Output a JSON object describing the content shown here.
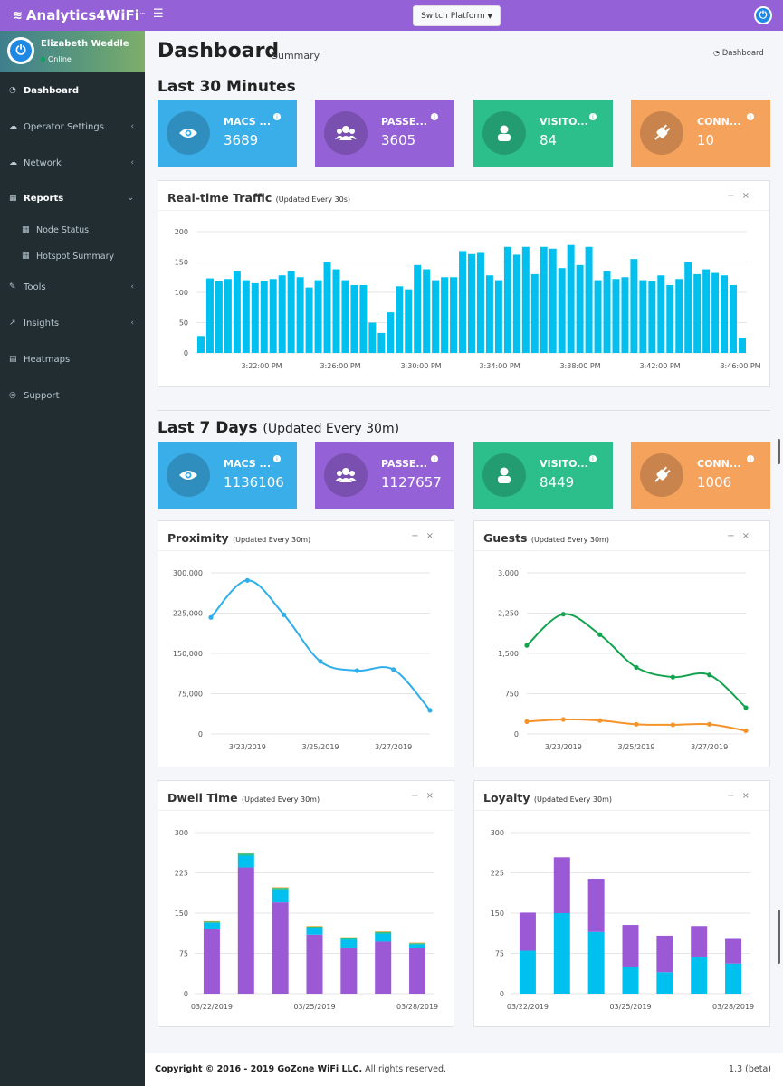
{
  "brand": {
    "name": "Analytics4WiFi",
    "tm": "™"
  },
  "topbar": {
    "switch_label": "Switch Platform",
    "menu_icon": "hamburger-icon"
  },
  "user": {
    "name": "Elizabeth Weddle",
    "status": "Online"
  },
  "sidebar": {
    "items": [
      {
        "label": "Dashboard",
        "icon": "dashboard-icon"
      },
      {
        "label": "Operator Settings",
        "icon": "cloud-icon"
      },
      {
        "label": "Network",
        "icon": "cloud-icon"
      },
      {
        "label": "Reports",
        "icon": "table-icon"
      },
      {
        "label": "Node Status",
        "icon": "table-icon"
      },
      {
        "label": "Hotspot Summary",
        "icon": "table-icon"
      },
      {
        "label": "Tools",
        "icon": "wrench-icon"
      },
      {
        "label": "Insights",
        "icon": "line-chart-icon"
      },
      {
        "label": "Heatmaps",
        "icon": "map-icon"
      },
      {
        "label": "Support",
        "icon": "life-ring-icon"
      }
    ]
  },
  "page": {
    "title": "Dashboard",
    "subtitle": "Summary",
    "breadcrumb": "Dashboard"
  },
  "last30": {
    "heading": "Last 30 Minutes",
    "boxes": [
      {
        "label": "MACS ...",
        "value": "3689",
        "color": "#3aaee8",
        "icon": "eye-icon"
      },
      {
        "label": "PASSE...",
        "value": "3605",
        "color": "#9461d6",
        "icon": "users-icon"
      },
      {
        "label": "VISITO...",
        "value": "84",
        "color": "#2dbf8b",
        "icon": "user-icon"
      },
      {
        "label": "CONN...",
        "value": "10",
        "color": "#f5a25d",
        "icon": "plug-icon"
      }
    ]
  },
  "last7": {
    "heading": "Last 7 Days",
    "heading_sub": "(Updated Every 30m)",
    "boxes": [
      {
        "label": "MACS ...",
        "value": "1136106",
        "color": "#3aaee8",
        "icon": "eye-icon"
      },
      {
        "label": "PASSE...",
        "value": "1127657",
        "color": "#9461d6",
        "icon": "users-icon"
      },
      {
        "label": "VISITO...",
        "value": "8449",
        "color": "#2dbf8b",
        "icon": "user-icon"
      },
      {
        "label": "CONN...",
        "value": "1006",
        "color": "#f5a25d",
        "icon": "plug-icon"
      }
    ]
  },
  "panels": {
    "traffic": {
      "title": "Real-time Traffic",
      "sub": "(Updated Every 30s)"
    },
    "proximity": {
      "title": "Proximity",
      "sub": "(Updated Every 30m)"
    },
    "guests": {
      "title": "Guests",
      "sub": "(Updated Every 30m)"
    },
    "dwell": {
      "title": "Dwell Time",
      "sub": "(Updated Every 30m)"
    },
    "loyalty": {
      "title": "Loyalty",
      "sub": "(Updated Every 30m)"
    }
  },
  "footer": {
    "copyright_bold": "Copyright © 2016 - 2019 GoZone WiFi LLC.",
    "copyright_rest": " All rights reserved.",
    "version": "1.3 (beta)"
  },
  "chart_data": [
    {
      "id": "traffic",
      "type": "bar",
      "title": "Real-time Traffic",
      "ylim": [
        0,
        200
      ],
      "yticks": [
        0,
        50,
        100,
        150,
        200
      ],
      "xtick_labels": [
        "3:22:00 PM",
        "3:26:00 PM",
        "3:30:00 PM",
        "3:34:00 PM",
        "3:38:00 PM",
        "3:42:00 PM",
        "3:46:00 PM"
      ],
      "color": "#00c0ef",
      "values": [
        28,
        123,
        118,
        122,
        135,
        120,
        115,
        118,
        122,
        128,
        135,
        125,
        108,
        120,
        150,
        138,
        120,
        112,
        112,
        50,
        33,
        67,
        110,
        105,
        145,
        138,
        120,
        125,
        125,
        168,
        163,
        165,
        128,
        120,
        175,
        162,
        175,
        130,
        175,
        172,
        140,
        178,
        145,
        175,
        120,
        135,
        122,
        125,
        155,
        120,
        118,
        128,
        112,
        122,
        150,
        130,
        138,
        132,
        128,
        112,
        25
      ],
      "color_hex": "#00c0ef"
    },
    {
      "id": "proximity",
      "type": "line",
      "title": "Proximity",
      "ylim": [
        0,
        300000
      ],
      "yticks": [
        0,
        75000,
        150000,
        225000,
        300000
      ],
      "ytick_labels": [
        "0",
        "75,000",
        "150,000",
        "225,000",
        "300,000"
      ],
      "x": [
        "3/22/2019",
        "3/23/2019",
        "3/24/2019",
        "3/25/2019",
        "3/26/2019",
        "3/27/2019",
        "3/28/2019"
      ],
      "xtick_labels": [
        "3/23/2019",
        "3/25/2019",
        "3/27/2019"
      ],
      "series": [
        {
          "values": [
            217000,
            286000,
            222000,
            135000,
            118000,
            120000,
            44000
          ],
          "color": "#2eaeea"
        }
      ]
    },
    {
      "id": "guests",
      "type": "line",
      "title": "Guests",
      "ylim": [
        0,
        3000
      ],
      "yticks": [
        0,
        750,
        1500,
        2250,
        3000
      ],
      "ytick_labels": [
        "0",
        "750",
        "1,500",
        "2,250",
        "3,000"
      ],
      "x": [
        "3/22/2019",
        "3/23/2019",
        "3/24/2019",
        "3/25/2019",
        "3/26/2019",
        "3/27/2019",
        "3/28/2019"
      ],
      "xtick_labels": [
        "3/23/2019",
        "3/25/2019",
        "3/27/2019"
      ],
      "series": [
        {
          "values": [
            1650,
            2230,
            1850,
            1240,
            1060,
            1100,
            490
          ],
          "color": "#13a34f"
        },
        {
          "values": [
            230,
            270,
            250,
            180,
            170,
            180,
            60
          ],
          "color": "#f5922a"
        }
      ]
    },
    {
      "id": "dwell",
      "type": "bar",
      "stacked": true,
      "title": "Dwell Time",
      "ylim": [
        0,
        300
      ],
      "yticks": [
        0,
        75,
        150,
        225,
        300
      ],
      "categories": [
        "03/22/2019",
        "03/23/2019",
        "03/24/2019",
        "03/25/2019",
        "03/26/2019",
        "03/27/2019",
        "03/28/2019"
      ],
      "xtick_labels": [
        "03/22/2019",
        "03/25/2019",
        "03/28/2019"
      ],
      "series": [
        {
          "values": [
            120,
            235,
            170,
            110,
            86,
            97,
            85
          ],
          "color": "#9b59d6"
        },
        {
          "values": [
            12,
            22,
            24,
            13,
            15,
            15,
            7
          ],
          "color": "#00c0ef"
        },
        {
          "values": [
            2,
            4,
            3,
            2,
            3,
            3,
            2
          ],
          "color": "#2dbf8b"
        },
        {
          "values": [
            1,
            2,
            1,
            1,
            1,
            1,
            1
          ],
          "color": "#f39c12"
        }
      ]
    },
    {
      "id": "loyalty",
      "type": "bar",
      "stacked": true,
      "title": "Loyalty",
      "ylim": [
        0,
        300
      ],
      "yticks": [
        0,
        75,
        150,
        225,
        300
      ],
      "categories": [
        "03/22/2019",
        "03/23/2019",
        "03/24/2019",
        "03/25/2019",
        "03/26/2019",
        "03/27/2019",
        "03/28/2019"
      ],
      "xtick_labels": [
        "03/22/2019",
        "03/25/2019",
        "03/28/2019"
      ],
      "series": [
        {
          "values": [
            80,
            150,
            115,
            50,
            40,
            68,
            56
          ],
          "color": "#00c0ef"
        },
        {
          "values": [
            71,
            104,
            99,
            78,
            68,
            58,
            46
          ],
          "color": "#9b59d6"
        }
      ]
    }
  ]
}
